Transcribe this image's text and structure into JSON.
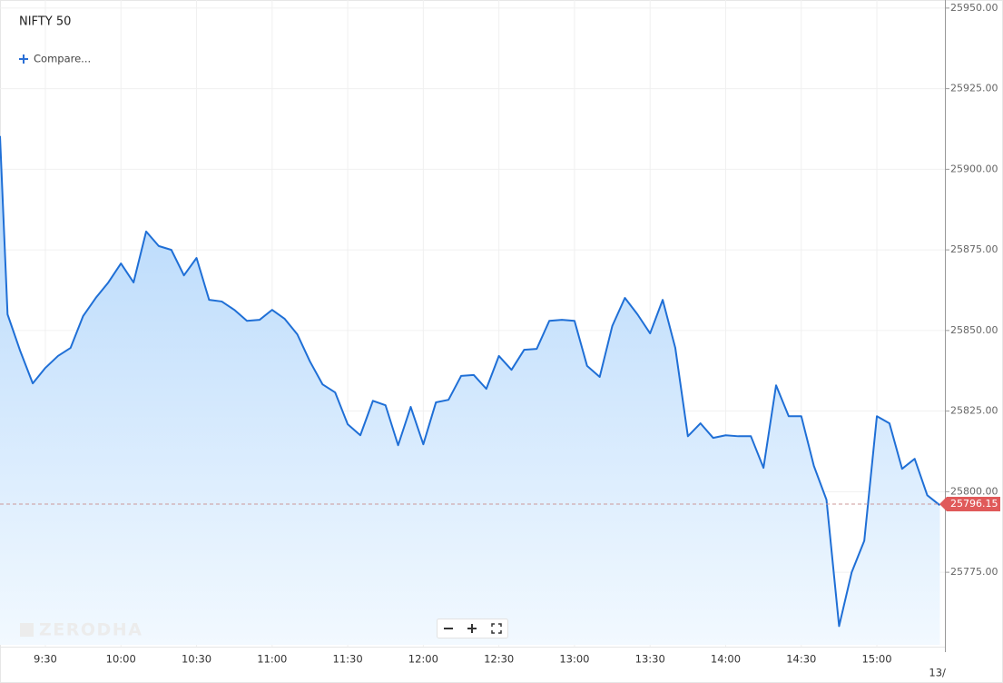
{
  "chart_data": {
    "type": "area-line",
    "title": "NIFTY 50",
    "compare_label": "Compare...",
    "watermark": "ZERODHA",
    "color": "#1f6fd6",
    "fill_top": "#b2d6fb",
    "fill_bottom": "#f2f9ff",
    "grid": true,
    "xlim": [
      552,
      927
    ],
    "ylim": [
      25752.5,
      25952.5
    ],
    "xticks": [
      {
        "value": 570,
        "label": "9:30"
      },
      {
        "value": 600,
        "label": "10:00"
      },
      {
        "value": 630,
        "label": "10:30"
      },
      {
        "value": 660,
        "label": "11:00"
      },
      {
        "value": 690,
        "label": "11:30"
      },
      {
        "value": 720,
        "label": "12:00"
      },
      {
        "value": 750,
        "label": "12:30"
      },
      {
        "value": 780,
        "label": "13:00"
      },
      {
        "value": 810,
        "label": "13:30"
      },
      {
        "value": 840,
        "label": "14:00"
      },
      {
        "value": 870,
        "label": "14:30"
      },
      {
        "value": 900,
        "label": "15:00"
      }
    ],
    "x_date_label": {
      "value": 924,
      "label": "13/"
    },
    "yticks": [
      {
        "value": 25775,
        "label": "25775.00"
      },
      {
        "value": 25800,
        "label": "25800.00"
      },
      {
        "value": 25825,
        "label": "25825.00"
      },
      {
        "value": 25850,
        "label": "25850.00"
      },
      {
        "value": 25875,
        "label": "25875.00"
      },
      {
        "value": 25900,
        "label": "25900.00"
      },
      {
        "value": 25925,
        "label": "25925.00"
      },
      {
        "value": 25950,
        "label": "25950.00"
      }
    ],
    "last_value": 25796.15,
    "last_value_color": "#e05a5a",
    "x": [
      552,
      555,
      560,
      565,
      570,
      575,
      580,
      585,
      590,
      595,
      600,
      605,
      610,
      615,
      620,
      625,
      630,
      635,
      640,
      645,
      650,
      655,
      660,
      665,
      670,
      675,
      680,
      685,
      690,
      695,
      700,
      705,
      710,
      715,
      720,
      725,
      730,
      735,
      740,
      745,
      750,
      755,
      760,
      765,
      770,
      775,
      780,
      785,
      790,
      795,
      800,
      805,
      810,
      815,
      820,
      825,
      830,
      835,
      840,
      845,
      850,
      855,
      860,
      865,
      870,
      875,
      880,
      885,
      890,
      895,
      900,
      905,
      910,
      915,
      920,
      925
    ],
    "values": [
      25910.3,
      25855,
      25843.7,
      25833.6,
      25838.4,
      25842.1,
      25844.6,
      25854.5,
      25860.1,
      25864.9,
      25870.8,
      25864.9,
      25880.7,
      25876.2,
      25875,
      25867.1,
      25872.5,
      25859.5,
      25859,
      25856.4,
      25853,
      25853.3,
      25856.4,
      25853.6,
      25848.8,
      25840.4,
      25833.3,
      25830.8,
      25820.9,
      25817.5,
      25828.2,
      25826.8,
      25814.4,
      25826.3,
      25814.7,
      25827.7,
      25828.5,
      25835.9,
      25836.2,
      25831.9,
      25842.1,
      25837.8,
      25844,
      25844.3,
      25853,
      25853.3,
      25853,
      25839,
      25835.6,
      25851.4,
      25860.1,
      25855,
      25849.1,
      25859.5,
      25844.6,
      25817.2,
      25821.2,
      25816.7,
      25817.5,
      25817.2,
      25817.2,
      25807.4,
      25833,
      25823.4,
      25823.4,
      25808,
      25797.5,
      25758.3,
      25775,
      25784.8,
      25823.4,
      25821.2,
      25807.1,
      25810.2,
      25798.9,
      25795.8
    ]
  }
}
